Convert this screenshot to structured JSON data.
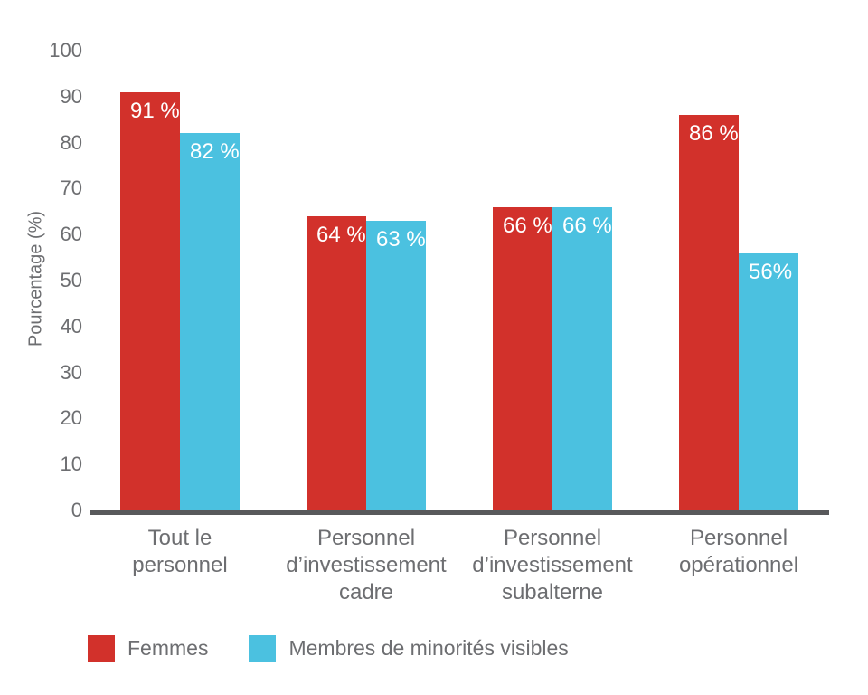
{
  "chart_data": {
    "type": "bar",
    "title": "",
    "ylabel": "Pourcentage (%)",
    "xlabel": "",
    "ylim": [
      0,
      100
    ],
    "ytick_step": 10,
    "yticks": [
      0,
      10,
      20,
      30,
      40,
      50,
      60,
      70,
      80,
      90,
      100
    ],
    "grid": false,
    "legend_position": "bottom",
    "categories": [
      "Tout le personnel",
      "Personnel d’investissement cadre",
      "Personnel d’investissement subalterne",
      "Personnel opérationnel"
    ],
    "category_lines": [
      [
        "Tout le",
        "personnel"
      ],
      [
        "Personnel",
        "d’investissement",
        "cadre"
      ],
      [
        "Personnel",
        "d’investissement",
        "subalterne"
      ],
      [
        "Personnel",
        "opérationnel"
      ]
    ],
    "series": [
      {
        "name": "Femmes",
        "color": "#D2312B",
        "values": [
          91,
          64,
          66,
          86
        ],
        "labels": [
          "91 %",
          "64 %",
          "66 %",
          "86 %"
        ]
      },
      {
        "name": "Membres de minorités visibles",
        "color": "#4BC1E0",
        "values": [
          82,
          63,
          66,
          56
        ],
        "labels": [
          "82 %",
          "63 %",
          "66 %",
          "56%"
        ]
      }
    ],
    "colors": {
      "axis": "#58595B",
      "text": "#6D6E71",
      "value_label": "#FFFFFF",
      "background": "#FFFFFF"
    }
  }
}
